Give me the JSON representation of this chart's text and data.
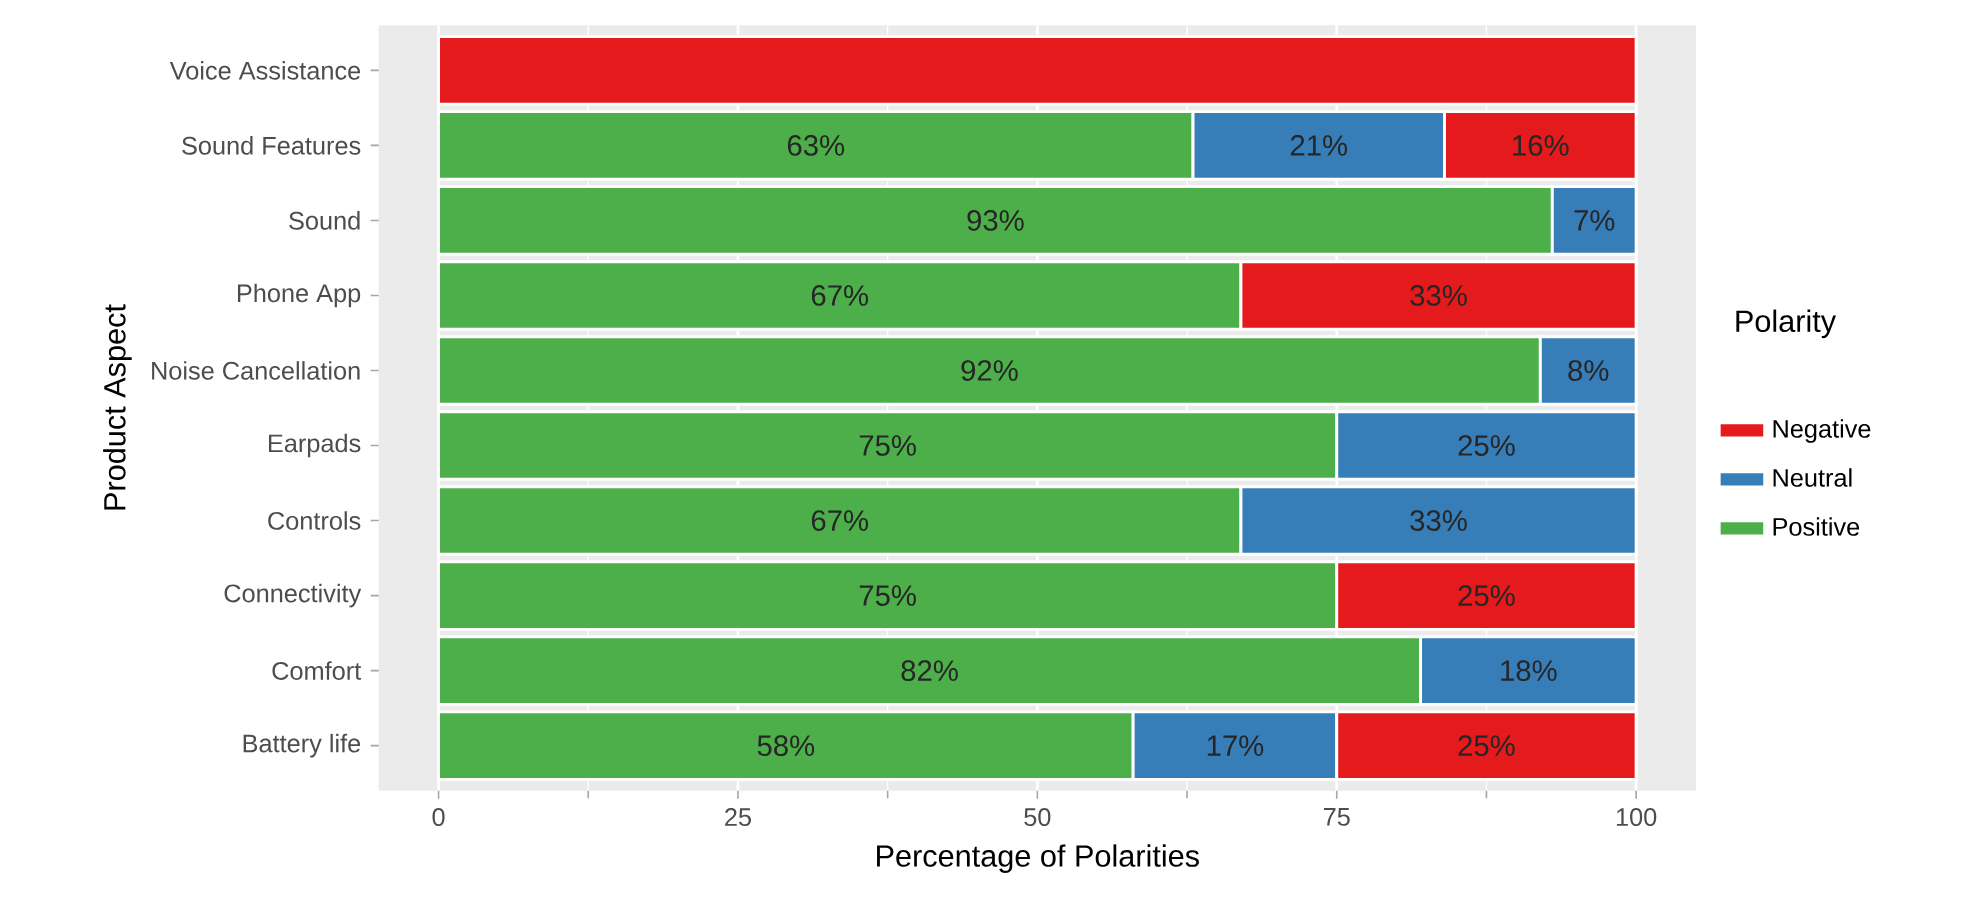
{
  "chart_data": {
    "type": "bar",
    "orientation": "horizontal",
    "stacked": true,
    "xlabel": "Percentage of Polarities",
    "ylabel": "Product Aspect",
    "legend_title": "Polarity",
    "legend": "right",
    "grid": "x",
    "categories": [
      "Voice Assistance",
      "Sound Features",
      "Sound",
      "Phone App",
      "Noise Cancellation",
      "Earpads",
      "Controls",
      "Connectivity",
      "Comfort",
      "Battery life"
    ],
    "xlim": [
      -5,
      105
    ],
    "xticks": [
      0,
      25,
      50,
      75,
      100
    ],
    "series": [
      {
        "name": "Positive",
        "color": "#4daf4a",
        "values": [
          null,
          63,
          93,
          67,
          92,
          75,
          67,
          75,
          82,
          58
        ],
        "value_labels": [
          null,
          "63%",
          "93%",
          "67%",
          "92%",
          "75%",
          "67%",
          "75%",
          "82%",
          "58%"
        ]
      },
      {
        "name": "Neutral",
        "color": "#377eb8",
        "values": [
          null,
          21,
          7,
          null,
          8,
          25,
          33,
          null,
          18,
          17
        ],
        "value_labels": [
          null,
          "21%",
          "7%",
          null,
          "8%",
          "25%",
          "33%",
          null,
          "18%",
          "17%"
        ]
      },
      {
        "name": "Negative",
        "color": "#e41a1c",
        "values": [
          100,
          16,
          null,
          33,
          null,
          null,
          null,
          25,
          null,
          25
        ],
        "value_labels": [
          null,
          "16%",
          null,
          "33%",
          null,
          null,
          null,
          "25%",
          null,
          "25%"
        ]
      }
    ]
  }
}
